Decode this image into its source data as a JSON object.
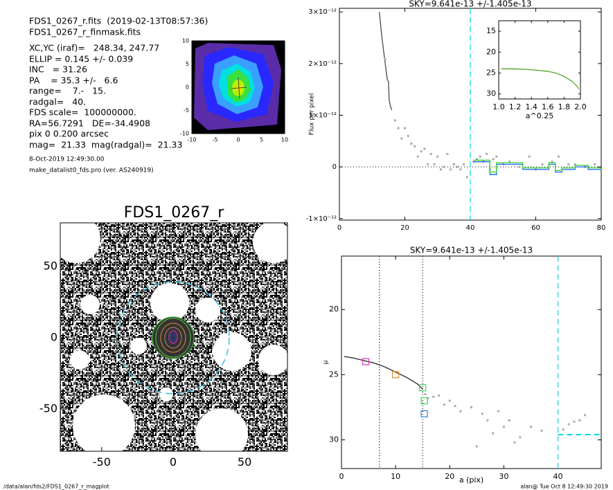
{
  "header": {
    "lines": [
      "FDS1_0267_r.fits  (2019-02-13T08:57:36)",
      "FDS1_0267_r_finmask.fits",
      "XC,YC (iraf)=   248.34, 247.77",
      "ELLIP = 0.145 +/- 0.039",
      "INC   = 31.26",
      "PA    = 35.3 +/-   6.6",
      "range=    7.-   15.",
      "radgal=   40.",
      "FDS scale=  100000000.",
      "RA=56.7291   DE=-34.4908",
      "pix 0 0.200 arcsec",
      "mag=  21.33  mag(radgal)=  21.33"
    ],
    "date": "8-Oct-2019 12:49:30.00",
    "program": "make_datalist0_fds.pro (ver. AS240919)"
  },
  "footer": {
    "path": "/data/alan/fds2/FDS1_0267_r_magplot",
    "stamp": "alan@  Tue Oct  8 12:49:30 2019"
  },
  "chart_data": [
    {
      "type": "image",
      "xlim": [
        -10,
        10
      ],
      "ylim": [
        -10,
        10
      ],
      "xticks": [
        -10,
        -5,
        0,
        5,
        10
      ],
      "yticks": [
        -10,
        -5,
        0,
        5,
        10
      ]
    },
    {
      "type": "image",
      "title": "FDS1_0267_r",
      "xlim": [
        -79,
        80
      ],
      "ylim": [
        -79.6,
        80.6
      ],
      "xticks": [
        -50,
        0,
        50
      ],
      "yticks": [
        -50,
        0,
        50
      ]
    },
    {
      "type": "line",
      "title": "SKY=9.641e-13 +/-1.405e-13",
      "ylabel": "Flux per pixel",
      "xlim": [
        0,
        80
      ],
      "ylim": [
        -1.03e-12,
        3.07e-12
      ],
      "xticks": [
        0,
        20,
        40,
        60,
        80
      ],
      "yticks": [
        {
          "value": -1e-12,
          "label": "-1×10⁻¹²"
        },
        0,
        {
          "value": 1e-12,
          "label": "1×10⁻¹²"
        },
        {
          "value": 2e-12,
          "label": "2×10⁻¹²"
        },
        {
          "value": 3e-12,
          "label": "3×10⁻¹²"
        }
      ],
      "series": [
        {
          "style": "line",
          "color": "#555555",
          "x": [
            12.2,
            13,
            14,
            14.6,
            15,
            15.2,
            15.5,
            16
          ],
          "values": [
            3e-12,
            2.5e-12,
            2e-12,
            1.7e-12,
            1.65e-12,
            1.3e-12,
            1.2e-12,
            1.1e-12
          ]
        },
        {
          "style": "points",
          "color": "#aaaaaa",
          "x": [
            14,
            17,
            18,
            19,
            20,
            21,
            22,
            23,
            24,
            25,
            26,
            27,
            28,
            29,
            30,
            31,
            32,
            33,
            34,
            35,
            36,
            37,
            38,
            39,
            41,
            42,
            43,
            44,
            45,
            46,
            47,
            48,
            50,
            52,
            55,
            58,
            60,
            62,
            65,
            67,
            70,
            72,
            75,
            78,
            80
          ],
          "values": [
            2.08e-12,
            9e-13,
            7.5e-13,
            5.5e-13,
            7.5e-13,
            6e-13,
            4.5e-13,
            4e-13,
            2e-13,
            3e-13,
            3.5e-13,
            5e-14,
            2.5e-13,
            5e-14,
            2e-13,
            -5e-14,
            0,
            2.5e-13,
            -5e-14,
            5e-14,
            0,
            -5e-14,
            5e-14,
            -2e-13,
            1e-13,
            1.5e-13,
            2e-13,
            1e-13,
            2.5e-13,
            -5e-14,
            1.5e-13,
            2e-13,
            5e-14,
            1e-13,
            0,
            2e-13,
            -5e-14,
            5e-14,
            1e-13,
            2e-13,
            5e-14,
            5e-14,
            0,
            5e-14,
            -5e-14
          ]
        },
        {
          "style": "step",
          "color": "#2060ff",
          "x": [
            41,
            44,
            46,
            48,
            52,
            56,
            60,
            64,
            66,
            68,
            72,
            76,
            80
          ],
          "values": [
            1e-13,
            1e-13,
            -1.5e-13,
            5e-14,
            5e-14,
            -5e-14,
            -5e-14,
            5e-14,
            -1e-13,
            -5e-14,
            0,
            -5e-14,
            -5e-14
          ]
        },
        {
          "style": "step",
          "color": "#30d030",
          "x": [
            41,
            44,
            46,
            48,
            52,
            56,
            60,
            64,
            66,
            68,
            72,
            76,
            80
          ],
          "values": [
            1.3e-13,
            1.3e-13,
            -1e-13,
            8e-14,
            8e-14,
            -2e-14,
            -2e-14,
            8e-14,
            -7e-14,
            -2e-14,
            3e-14,
            -2e-14,
            -2e-14
          ]
        }
      ],
      "vlines": [
        {
          "x": 40,
          "color": "#00d8e0",
          "dash": "8,5"
        }
      ],
      "hlines": [
        {
          "y": 0,
          "color": "#000000",
          "dash": "1,3"
        }
      ],
      "inset": {
        "type": "line",
        "xlabel": "a^0.25",
        "xlim": [
          1,
          2
        ],
        "ylim": [
          31.2,
          12.5
        ],
        "xticks": [
          {
            "value": 1,
            "label": "1.0"
          },
          1.2,
          1.4,
          1.6,
          1.8,
          {
            "value": 2,
            "label": "2.0"
          }
        ],
        "yticks": [
          15,
          20,
          25,
          30
        ],
        "series": [
          {
            "style": "line",
            "color": "#60a830",
            "x": [
              1.03,
              1.2,
              1.4,
              1.5,
              1.6,
              1.7,
              1.75,
              1.8,
              1.85,
              1.9,
              1.95,
              1.98
            ],
            "values": [
              24.0,
              24.0,
              24.2,
              24.4,
              24.6,
              25.0,
              25.4,
              25.8,
              26.4,
              27.0,
              28.0,
              28.8
            ]
          }
        ]
      }
    },
    {
      "type": "line",
      "title": "SKY=9.641e-13 +/-1.405e-13",
      "xlabel": "a (pix)",
      "ylabel": "μ",
      "xlim": [
        0,
        48
      ],
      "ylim": [
        32.2,
        15.9
      ],
      "xticks": [
        0,
        10,
        20,
        30,
        40
      ],
      "yticks": [
        20,
        25,
        30
      ],
      "series": [
        {
          "style": "line",
          "color": "#333333",
          "x": [
            0.5,
            2,
            4,
            6,
            8,
            10,
            12,
            14,
            15
          ],
          "values": [
            23.6,
            23.7,
            23.9,
            24.1,
            24.4,
            24.8,
            25.2,
            25.7,
            26.1
          ]
        },
        {
          "style": "points",
          "color": "#aaaaaa",
          "x": [
            15.5,
            16,
            17,
            18,
            19,
            20,
            21,
            22,
            24,
            25,
            26,
            27,
            28,
            29,
            30,
            31,
            32,
            33,
            35,
            37,
            41,
            42,
            43,
            44,
            45
          ],
          "values": [
            26.5,
            26.8,
            26.7,
            26.6,
            27.3,
            27.0,
            27.4,
            27.8,
            27.5,
            30.5,
            28.0,
            28.5,
            29.5,
            27.8,
            29.0,
            28.5,
            30.2,
            29.8,
            29.0,
            29.3,
            29.2,
            28.8,
            28.6,
            28.5,
            28.1
          ]
        },
        {
          "style": "square",
          "color": "#e030c0",
          "x": [
            4.5
          ],
          "values": [
            24.0
          ]
        },
        {
          "style": "square",
          "color": "#e09030",
          "x": [
            10
          ],
          "values": [
            25.0
          ]
        },
        {
          "style": "square",
          "color": "#40d060",
          "x": [
            15,
            15.3
          ],
          "values": [
            26.0,
            27.0
          ]
        },
        {
          "style": "square",
          "color": "#3080e0",
          "x": [
            15.3
          ],
          "values": [
            28.0
          ]
        }
      ],
      "vlines": [
        {
          "x": 7,
          "color": "#000000",
          "dash": "1,3"
        },
        {
          "x": 15,
          "color": "#000000",
          "dash": "1,3"
        },
        {
          "x": 40,
          "color": "#00d8e0",
          "dash": "8,5"
        }
      ],
      "segments": [
        {
          "x": [
            40,
            48
          ],
          "y": [
            29.6,
            29.6
          ],
          "color": "#00d8e0",
          "dash": "8,5"
        }
      ]
    }
  ]
}
